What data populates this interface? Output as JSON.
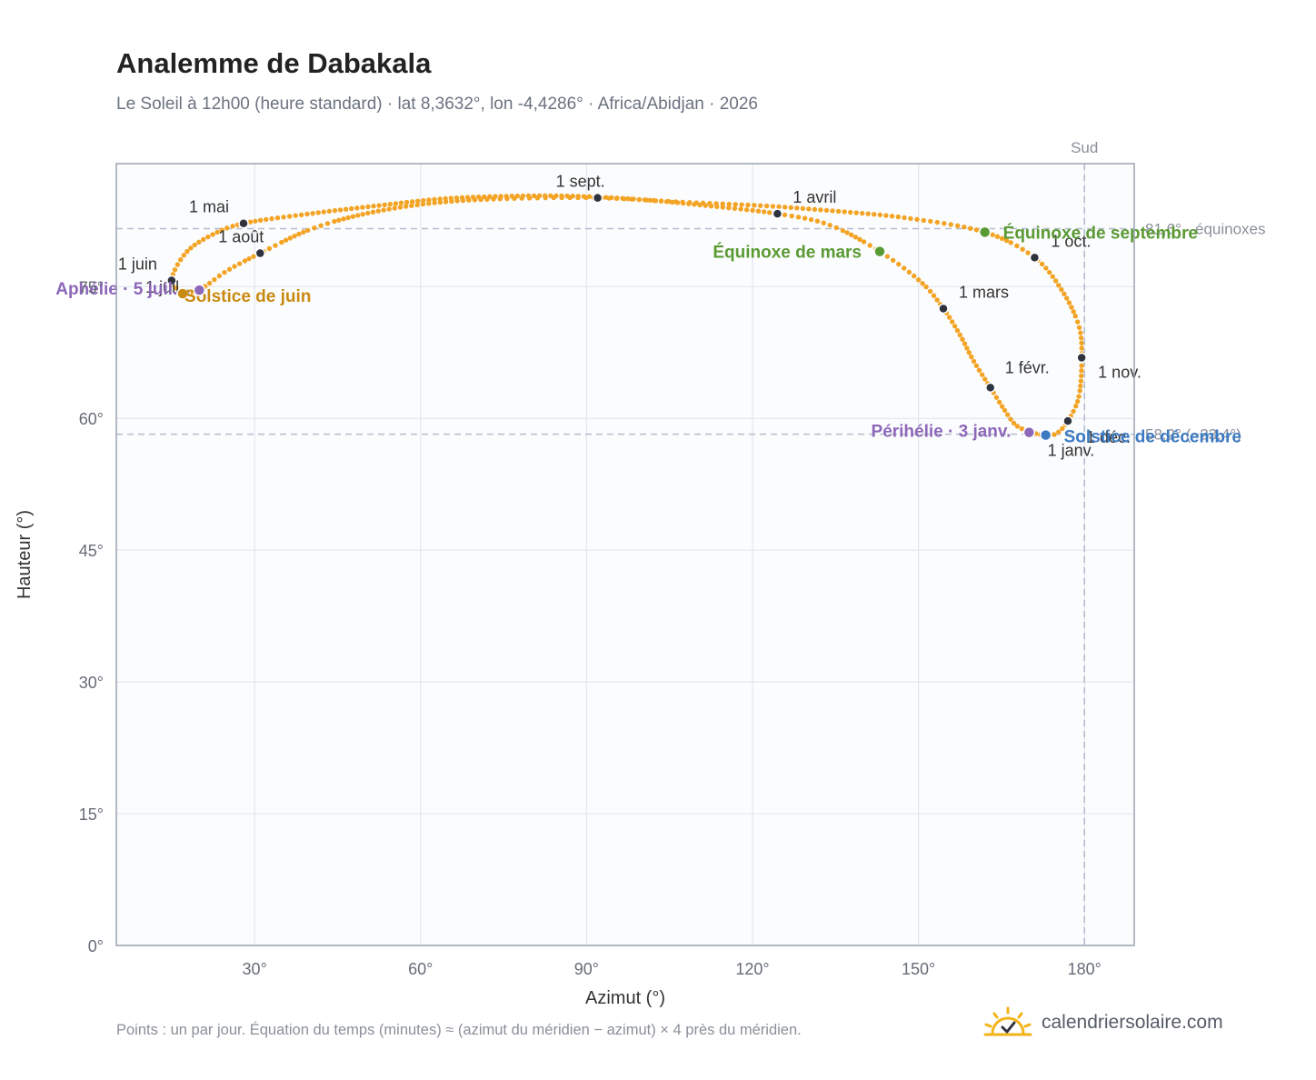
{
  "title": "Analemme de Dabakala",
  "subtitle": "Le Soleil à 12h00 (heure standard) · lat 8,3632°, lon -4,4286° · Africa/Abidjan · 2026",
  "footnote": "Points : un par jour. Équation du temps (minutes) ≈ (azimut du méridien − azimut) × 4 près du méridien.",
  "brand": {
    "name": "calendriersolaire.com",
    "icon": "sun-check-icon"
  },
  "colors": {
    "curve": "#f3a424",
    "month_dot": "#2f3340",
    "equinox": "#5a9a33",
    "june_solstice": "#c98a12",
    "december_solstice": "#3b7ac2",
    "apsis": "#8d67b8",
    "reference_line": "#b3bdcc",
    "plot_bg": "#fbfcfe",
    "frame": "#9aa3b0",
    "grid": "#e3e7ed"
  },
  "chart_data": {
    "type": "scatter",
    "xlabel": "Azimut (°)",
    "ylabel": "Hauteur (°)",
    "xlim": [
      5,
      189
    ],
    "ylim": [
      0,
      89
    ],
    "xticks": [
      30,
      60,
      90,
      120,
      150,
      180
    ],
    "xtick_labels": [
      "30°",
      "60°",
      "90°",
      "120°",
      "150°",
      "180°"
    ],
    "yticks": [
      0,
      15,
      30,
      45,
      60,
      75
    ],
    "ytick_labels": [
      "0°",
      "15°",
      "30°",
      "45°",
      "60°",
      "75°"
    ],
    "grid": true,
    "meridian": {
      "azimuth": 180,
      "label": "Sud"
    },
    "reference_lines": [
      {
        "altitude": 81.6,
        "label": "81,6° · équinoxes"
      },
      {
        "altitude": 58.2,
        "label": "58,2° (−23,4°)"
      }
    ],
    "month_markers": [
      {
        "label": "1 janv.",
        "az": 173.0,
        "alt": 58.0
      },
      {
        "label": "1 févr.",
        "az": 163.0,
        "alt": 63.5
      },
      {
        "label": "1 mars",
        "az": 154.5,
        "alt": 72.5
      },
      {
        "label": "1 avril",
        "az": 124.5,
        "alt": 83.3
      },
      {
        "label": "1 mai",
        "az": 28.0,
        "alt": 82.2
      },
      {
        "label": "1 juin",
        "az": 15.0,
        "alt": 75.7
      },
      {
        "label": "1 juil.",
        "az": 17.5,
        "alt": 74.3
      },
      {
        "label": "1 août",
        "az": 31.0,
        "alt": 78.8
      },
      {
        "label": "1 sept.",
        "az": 92.0,
        "alt": 85.1
      },
      {
        "label": "1 oct.",
        "az": 171.0,
        "alt": 78.3
      },
      {
        "label": "1 nov.",
        "az": 179.5,
        "alt": 66.9
      },
      {
        "label": "1 déc.",
        "az": 177.0,
        "alt": 59.7
      }
    ],
    "events": [
      {
        "label": "Équinoxe de mars",
        "az": 143.0,
        "alt": 79.0,
        "kind": "equinox"
      },
      {
        "label": "Équinoxe de septembre",
        "az": 162.0,
        "alt": 81.2,
        "kind": "equinox"
      },
      {
        "label": "Solstice de juin",
        "az": 17.0,
        "alt": 74.2,
        "kind": "june_solstice"
      },
      {
        "label": "Solstice de décembre",
        "az": 173.0,
        "alt": 58.1,
        "kind": "december_solstice"
      },
      {
        "label": "Aphélie · 5 juil.",
        "az": 20.0,
        "alt": 74.6,
        "kind": "apsis"
      },
      {
        "label": "Périhélie · 3 janv.",
        "az": 170.0,
        "alt": 58.4,
        "kind": "apsis"
      }
    ],
    "daily_path": [
      [
        173.0,
        58.0
      ],
      [
        170.0,
        58.5
      ],
      [
        167.5,
        59.3
      ],
      [
        165.5,
        61.0
      ],
      [
        163.0,
        63.5
      ],
      [
        160.0,
        66.5
      ],
      [
        157.5,
        69.5
      ],
      [
        154.5,
        72.5
      ],
      [
        150.5,
        75.5
      ],
      [
        143.0,
        79.0
      ],
      [
        134.0,
        82.0
      ],
      [
        124.5,
        83.3
      ],
      [
        112.0,
        84.2
      ],
      [
        100.0,
        84.9
      ],
      [
        88.0,
        85.3
      ],
      [
        76.0,
        85.3
      ],
      [
        64.0,
        85.0
      ],
      [
        52.0,
        84.2
      ],
      [
        40.0,
        83.3
      ],
      [
        28.0,
        82.2
      ],
      [
        22.0,
        80.8
      ],
      [
        17.5,
        78.8
      ],
      [
        15.0,
        75.7
      ],
      [
        17.5,
        74.3
      ],
      [
        20.0,
        74.6
      ],
      [
        25.0,
        76.8
      ],
      [
        31.0,
        78.8
      ],
      [
        40.0,
        81.5
      ],
      [
        50.0,
        83.3
      ],
      [
        62.0,
        84.5
      ],
      [
        75.0,
        85.0
      ],
      [
        92.0,
        85.1
      ],
      [
        108.0,
        84.6
      ],
      [
        122.0,
        84.2
      ],
      [
        135.0,
        83.6
      ],
      [
        148.0,
        82.8
      ],
      [
        162.0,
        81.2
      ],
      [
        171.0,
        78.3
      ],
      [
        176.0,
        74.5
      ],
      [
        179.0,
        70.5
      ],
      [
        179.5,
        66.9
      ],
      [
        179.0,
        62.5
      ],
      [
        177.0,
        59.7
      ],
      [
        175.0,
        58.3
      ],
      [
        173.0,
        58.0
      ]
    ]
  }
}
